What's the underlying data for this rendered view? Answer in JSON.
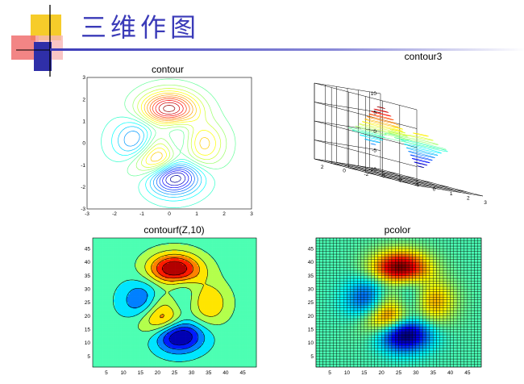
{
  "slide": {
    "title": "三维作图",
    "colors": {
      "title": "#3a3ab8",
      "deco_yellow": "#f6cc2a",
      "deco_red": "#f07070",
      "deco_blue": "#2f2fa8"
    }
  },
  "chart_data": [
    {
      "type": "contour",
      "title": "contour",
      "function": "peaks",
      "xlim": [
        -3,
        3
      ],
      "ylim": [
        -3,
        3
      ],
      "x_ticks": [
        "-3",
        "-2",
        "-1",
        "0",
        "1",
        "2",
        "3"
      ],
      "y_ticks": [
        "-3",
        "-2",
        "-1",
        "0",
        "1",
        "2",
        "3"
      ],
      "colormap": "jet",
      "filled": false
    },
    {
      "type": "contour3",
      "title": "contour3",
      "function": "peaks",
      "xlim": [
        -3,
        3
      ],
      "ylim": [
        -3,
        3
      ],
      "zlim": [
        -10,
        10
      ],
      "x_ticks": [
        "-3",
        "-2",
        "-1",
        "0",
        "1",
        "2",
        "3"
      ],
      "y_ticks": [
        "-2",
        "0",
        "2"
      ],
      "z_ticks": [
        "-10",
        "-5",
        "0",
        "5",
        "10"
      ],
      "colormap": "jet",
      "grid": true
    },
    {
      "type": "filled-contour",
      "title": "contourf(Z,10)",
      "function": "peaks",
      "levels": 10,
      "xlim": [
        1,
        49
      ],
      "ylim": [
        1,
        49
      ],
      "x_ticks": [
        "5",
        "10",
        "15",
        "20",
        "25",
        "30",
        "35",
        "40",
        "45"
      ],
      "y_ticks": [
        "5",
        "10",
        "15",
        "20",
        "25",
        "30",
        "35",
        "40",
        "45"
      ],
      "colormap": "jet"
    },
    {
      "type": "heatmap",
      "title": "pcolor",
      "function": "peaks",
      "grid_size": 49,
      "xlim": [
        1,
        49
      ],
      "ylim": [
        1,
        49
      ],
      "x_ticks": [
        "5",
        "10",
        "15",
        "20",
        "25",
        "30",
        "35",
        "40",
        "45"
      ],
      "y_ticks": [
        "5",
        "10",
        "15",
        "20",
        "25",
        "30",
        "35",
        "40",
        "45"
      ],
      "colormap": "jet",
      "grid": true
    }
  ]
}
